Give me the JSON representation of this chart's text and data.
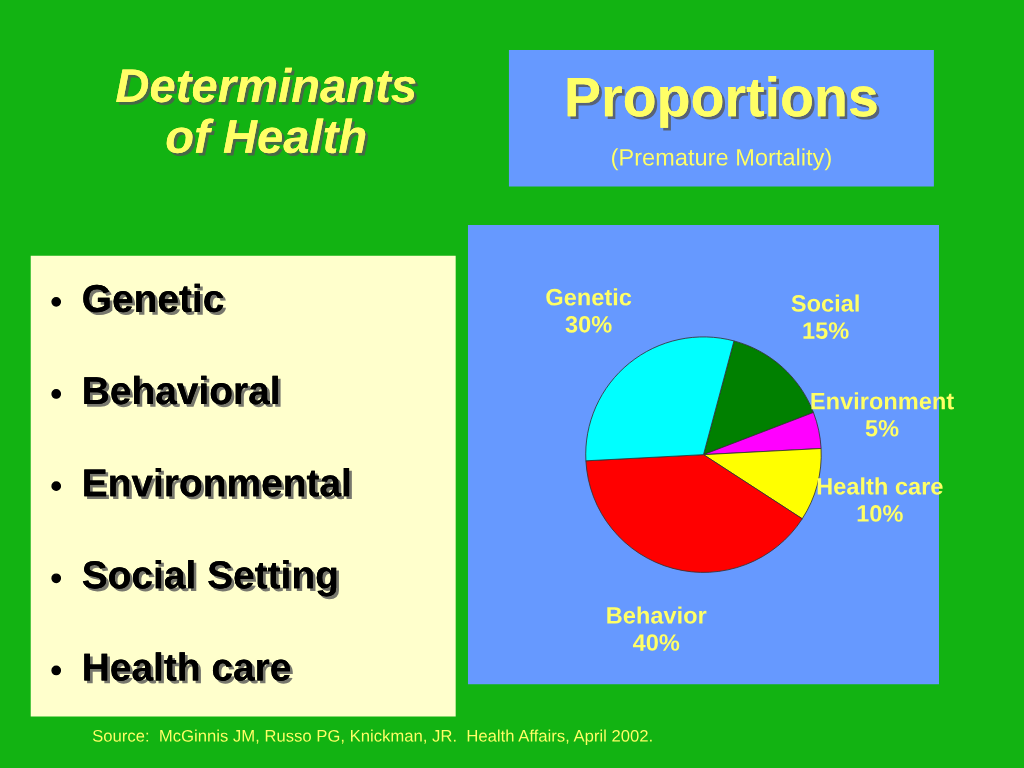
{
  "chart_data": [
    {
      "type": "other",
      "title": "Determinants of Health",
      "annotations": [
        "Genetic",
        "Behavioral",
        "Environmental",
        "Social Setting",
        "Health care"
      ]
    },
    {
      "type": "pie",
      "title": "Proportions",
      "subtitle": "(Premature Mortality)",
      "categories": [
        "Social",
        "Environment",
        "Health care",
        "Behavior",
        "Genetic"
      ],
      "values": [
        15,
        5,
        10,
        40,
        30
      ],
      "value_labels": [
        "15%",
        "5%",
        "10%",
        "40%",
        "30%"
      ],
      "colors": [
        "#008000",
        "#ff00ff",
        "#ffff00",
        "#ff0000",
        "#00ffff"
      ],
      "annotations": [
        "Source:  McGinnis JM, Russo PG, Knickman, JR.  Health Affairs, April 2002."
      ],
      "legend": false
    }
  ]
}
